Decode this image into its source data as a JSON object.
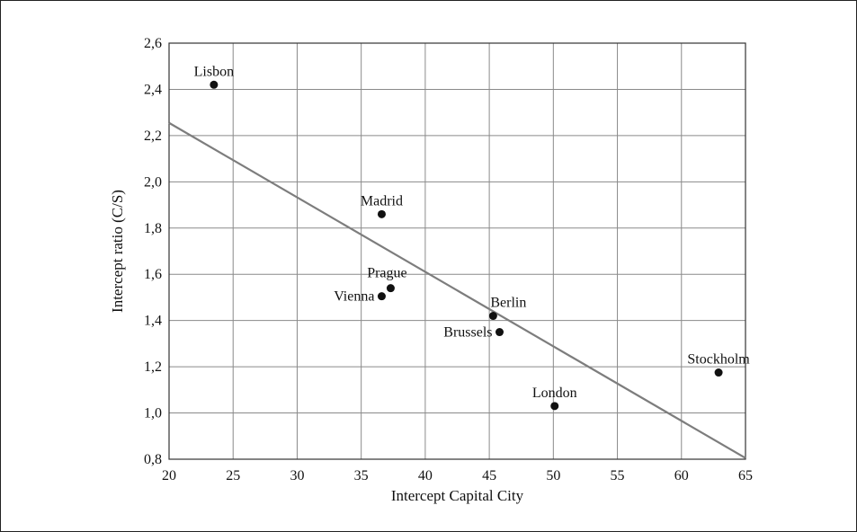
{
  "chart_data": {
    "type": "scatter",
    "xlabel": "Intercept Capital City",
    "ylabel": "Intercept ratio (C/S)",
    "xlim": [
      20,
      65
    ],
    "ylim": [
      0.8,
      2.6
    ],
    "x_ticks": [
      20,
      25,
      30,
      35,
      40,
      45,
      50,
      55,
      60,
      65
    ],
    "y_ticks": [
      0.8,
      1.0,
      1.2,
      1.4,
      1.6,
      1.8,
      2.0,
      2.2,
      2.4,
      2.6
    ],
    "x_tick_labels": [
      "20",
      "25",
      "30",
      "35",
      "40",
      "45",
      "50",
      "55",
      "60",
      "65"
    ],
    "y_tick_labels": [
      "0,8",
      "1,0",
      "1,2",
      "1,4",
      "1,6",
      "1,8",
      "2,0",
      "2,2",
      "2,4",
      "2,6"
    ],
    "grid": true,
    "points": [
      {
        "label": "Lisbon",
        "x": 23.5,
        "y": 2.42,
        "label_pos": "above"
      },
      {
        "label": "Madrid",
        "x": 36.6,
        "y": 1.86,
        "label_pos": "above"
      },
      {
        "label": "Prague",
        "x": 37.3,
        "y": 1.54,
        "label_pos": "above-left"
      },
      {
        "label": "Vienna",
        "x": 36.6,
        "y": 1.505,
        "label_pos": "left"
      },
      {
        "label": "Berlin",
        "x": 45.3,
        "y": 1.42,
        "label_pos": "above-right"
      },
      {
        "label": "Brussels",
        "x": 45.8,
        "y": 1.35,
        "label_pos": "left"
      },
      {
        "label": "London",
        "x": 50.1,
        "y": 1.03,
        "label_pos": "above"
      },
      {
        "label": "Stockholm",
        "x": 62.9,
        "y": 1.175,
        "label_pos": "above"
      }
    ],
    "trendline": {
      "x": [
        20,
        65
      ],
      "y": [
        2.255,
        0.805
      ]
    },
    "colors": {
      "points": "#111111",
      "trendline": "#7d7d7d",
      "grid": "#8a8a8a"
    }
  }
}
